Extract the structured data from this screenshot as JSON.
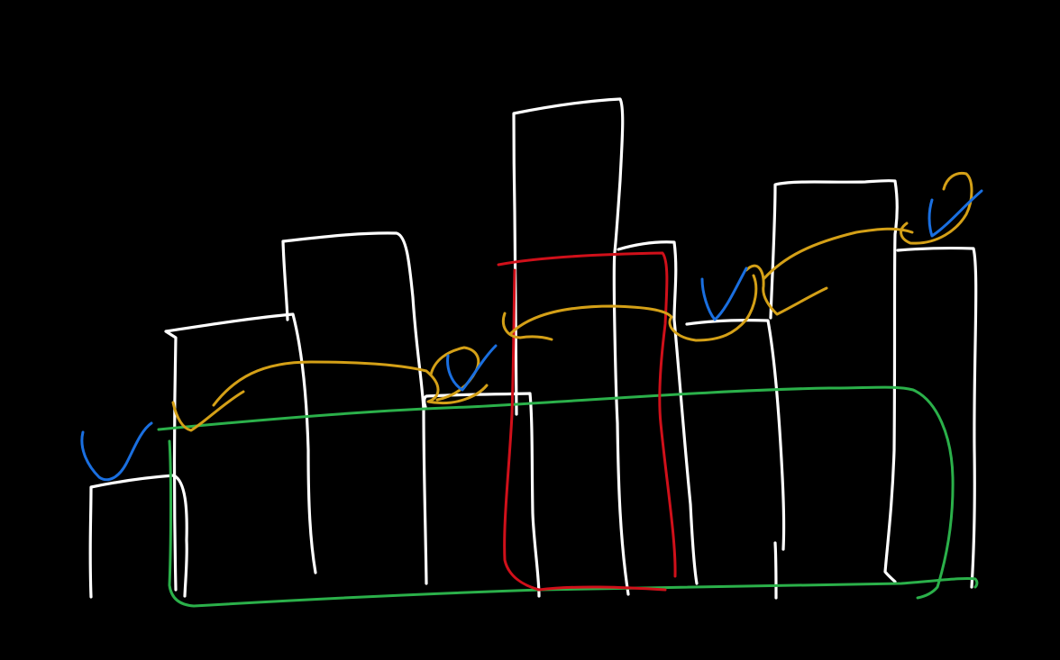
{
  "colors": {
    "background": "#000000",
    "bars": "#ffffff",
    "checkmarks": "#1a6fe0",
    "hops": "#d4a017",
    "window": "#2bb04a",
    "highlight": "#d0101a"
  },
  "icons": {
    "check": "checkmark-icon"
  }
}
